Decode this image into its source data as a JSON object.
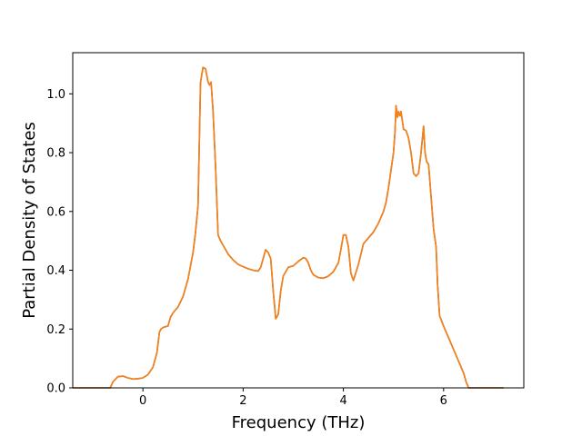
{
  "chart_data": {
    "type": "line",
    "title": "",
    "xlabel": "Frequency (THz)",
    "ylabel": "Partial Density of States",
    "xlim": [
      -1.4,
      7.6
    ],
    "ylim": [
      0.0,
      1.14
    ],
    "xticks": [
      0,
      2,
      4,
      6
    ],
    "xtick_labels": [
      "0",
      "2",
      "4",
      "6"
    ],
    "yticks": [
      0.0,
      0.2,
      0.4,
      0.6,
      0.8,
      1.0
    ],
    "ytick_labels": [
      "0.0",
      "0.2",
      "0.4",
      "0.6",
      "0.8",
      "1.0"
    ],
    "grid": false,
    "legend": "none",
    "series": [
      {
        "color": "#1f77b4",
        "x": [
          -1.4,
          -0.65,
          -0.6,
          -0.5,
          -0.4,
          -0.3,
          -0.2,
          -0.1,
          0.0,
          0.1,
          0.2,
          0.28,
          0.33,
          0.36,
          0.4,
          0.45,
          0.5,
          0.55,
          0.6,
          0.7,
          0.8,
          0.9,
          1.0,
          1.05,
          1.1,
          1.15,
          1.2,
          1.25,
          1.3,
          1.33,
          1.36,
          1.4,
          1.45,
          1.5,
          1.55,
          1.6,
          1.7,
          1.8,
          1.9,
          2.0,
          2.1,
          2.2,
          2.3,
          2.35,
          2.4,
          2.45,
          2.5,
          2.55,
          2.6,
          2.65,
          2.7,
          2.75,
          2.8,
          2.9,
          3.0,
          3.1,
          3.2,
          3.25,
          3.3,
          3.35,
          3.4,
          3.5,
          3.6,
          3.7,
          3.8,
          3.9,
          3.95,
          4.0,
          4.05,
          4.1,
          4.15,
          4.2,
          4.3,
          4.4,
          4.5,
          4.6,
          4.7,
          4.8,
          4.85,
          4.9,
          4.95,
          5.0,
          5.03,
          5.05,
          5.08,
          5.1,
          5.13,
          5.15,
          5.2,
          5.25,
          5.3,
          5.35,
          5.4,
          5.45,
          5.5,
          5.55,
          5.6,
          5.63,
          5.66,
          5.7,
          5.75,
          5.8,
          5.85,
          5.88,
          5.92,
          6.0,
          6.1,
          6.2,
          6.3,
          6.4,
          6.45,
          6.5,
          6.55,
          6.6,
          7.2
        ],
        "y": [
          0.0,
          0.0,
          0.02,
          0.038,
          0.04,
          0.034,
          0.03,
          0.031,
          0.034,
          0.045,
          0.07,
          0.12,
          0.19,
          0.2,
          0.205,
          0.208,
          0.21,
          0.24,
          0.255,
          0.275,
          0.31,
          0.37,
          0.46,
          0.53,
          0.62,
          1.04,
          1.09,
          1.085,
          1.04,
          1.03,
          1.04,
          0.94,
          0.75,
          0.52,
          0.5,
          0.485,
          0.455,
          0.435,
          0.42,
          0.412,
          0.405,
          0.4,
          0.397,
          0.41,
          0.44,
          0.47,
          0.46,
          0.44,
          0.33,
          0.235,
          0.25,
          0.33,
          0.38,
          0.41,
          0.415,
          0.43,
          0.443,
          0.44,
          0.425,
          0.4,
          0.385,
          0.375,
          0.373,
          0.38,
          0.395,
          0.425,
          0.47,
          0.52,
          0.52,
          0.48,
          0.39,
          0.365,
          0.42,
          0.49,
          0.51,
          0.53,
          0.56,
          0.6,
          0.63,
          0.68,
          0.74,
          0.8,
          0.87,
          0.96,
          0.92,
          0.94,
          0.925,
          0.94,
          0.88,
          0.875,
          0.85,
          0.8,
          0.73,
          0.72,
          0.73,
          0.8,
          0.89,
          0.8,
          0.77,
          0.76,
          0.65,
          0.54,
          0.48,
          0.35,
          0.245,
          0.21,
          0.17,
          0.13,
          0.09,
          0.05,
          0.02,
          0.0,
          0.0,
          0.0,
          0.0
        ]
      },
      {
        "color": "#ff7f0e",
        "x": [
          -1.4,
          -0.65,
          -0.6,
          -0.5,
          -0.4,
          -0.3,
          -0.2,
          -0.1,
          0.0,
          0.1,
          0.2,
          0.28,
          0.33,
          0.36,
          0.4,
          0.45,
          0.5,
          0.55,
          0.6,
          0.7,
          0.8,
          0.9,
          1.0,
          1.05,
          1.1,
          1.15,
          1.2,
          1.25,
          1.3,
          1.33,
          1.36,
          1.4,
          1.45,
          1.5,
          1.55,
          1.6,
          1.7,
          1.8,
          1.9,
          2.0,
          2.1,
          2.2,
          2.3,
          2.35,
          2.4,
          2.45,
          2.5,
          2.55,
          2.6,
          2.65,
          2.7,
          2.75,
          2.8,
          2.9,
          3.0,
          3.1,
          3.2,
          3.25,
          3.3,
          3.35,
          3.4,
          3.5,
          3.6,
          3.7,
          3.8,
          3.9,
          3.95,
          4.0,
          4.05,
          4.1,
          4.15,
          4.2,
          4.3,
          4.4,
          4.5,
          4.6,
          4.7,
          4.8,
          4.85,
          4.9,
          4.95,
          5.0,
          5.03,
          5.05,
          5.08,
          5.1,
          5.13,
          5.15,
          5.2,
          5.25,
          5.3,
          5.35,
          5.4,
          5.45,
          5.5,
          5.55,
          5.6,
          5.63,
          5.66,
          5.7,
          5.75,
          5.8,
          5.85,
          5.88,
          5.92,
          6.0,
          6.1,
          6.2,
          6.3,
          6.4,
          6.45,
          6.5,
          6.55,
          6.6,
          7.2
        ],
        "y": [
          0.0,
          0.0,
          0.02,
          0.038,
          0.04,
          0.034,
          0.03,
          0.031,
          0.034,
          0.045,
          0.07,
          0.12,
          0.19,
          0.2,
          0.205,
          0.208,
          0.21,
          0.24,
          0.255,
          0.275,
          0.31,
          0.37,
          0.46,
          0.53,
          0.62,
          1.04,
          1.09,
          1.085,
          1.04,
          1.03,
          1.04,
          0.94,
          0.75,
          0.52,
          0.5,
          0.485,
          0.455,
          0.435,
          0.42,
          0.412,
          0.405,
          0.4,
          0.397,
          0.41,
          0.44,
          0.47,
          0.46,
          0.44,
          0.33,
          0.235,
          0.25,
          0.33,
          0.38,
          0.41,
          0.415,
          0.43,
          0.443,
          0.44,
          0.425,
          0.4,
          0.385,
          0.375,
          0.373,
          0.38,
          0.395,
          0.425,
          0.47,
          0.52,
          0.52,
          0.48,
          0.39,
          0.365,
          0.42,
          0.49,
          0.51,
          0.53,
          0.56,
          0.6,
          0.63,
          0.68,
          0.74,
          0.8,
          0.87,
          0.96,
          0.92,
          0.94,
          0.925,
          0.94,
          0.88,
          0.875,
          0.85,
          0.8,
          0.73,
          0.72,
          0.73,
          0.8,
          0.89,
          0.8,
          0.77,
          0.76,
          0.65,
          0.54,
          0.48,
          0.35,
          0.245,
          0.21,
          0.17,
          0.13,
          0.09,
          0.05,
          0.02,
          0.0,
          0.0,
          0.0,
          0.0
        ]
      }
    ]
  }
}
